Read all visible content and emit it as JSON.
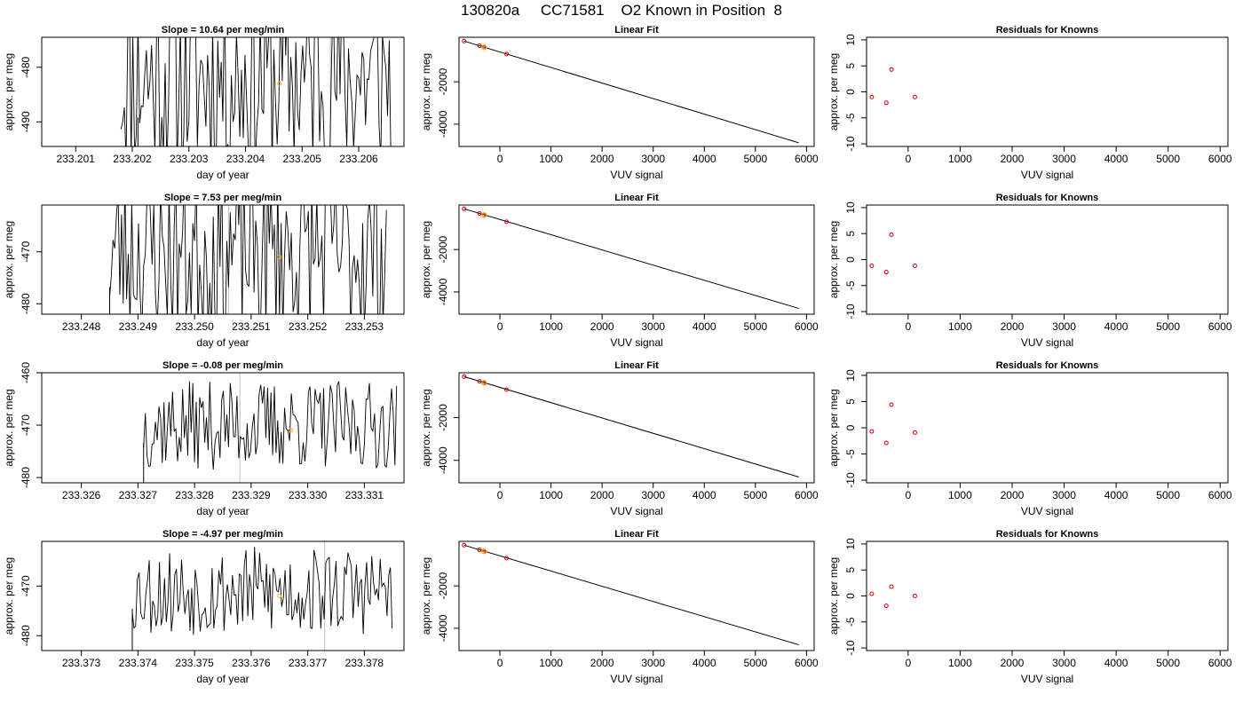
{
  "title": "130820a     CC71581    O2 Known in Position  8",
  "colors": {
    "line": "#000000",
    "highlight": "#ffa500",
    "residual_points": "#cc0000",
    "vline": "#bebebe"
  },
  "chart_data": [
    {
      "type": "line",
      "row": 1,
      "panel": "time-series",
      "title": "Slope =  10.64  per meg/min",
      "xlabel": "day of year",
      "ylabel": "approx. per meg",
      "xlim": [
        233.2004,
        233.2068
      ],
      "ylim": [
        -494.5,
        -474.5
      ],
      "xticks": [
        233.201,
        233.202,
        233.203,
        233.204,
        233.205,
        233.206
      ],
      "yticks": [
        -490,
        -480
      ],
      "series_start": 233.2018,
      "series_end": 233.2066,
      "series_step": 3e-05,
      "series_center": -482,
      "series_amp": 18,
      "series_seed": 11,
      "first_segment_x": 233.2021,
      "vline_x": 233.2055,
      "highlight": {
        "x": 233.2046,
        "y": -483
      }
    },
    {
      "type": "scatter-line",
      "row": 1,
      "panel": "linear-fit",
      "title": "Linear Fit",
      "xlabel": "VUV signal",
      "ylabel": "approx. per meg",
      "xlim": [
        -800,
        6150
      ],
      "ylim": [
        -5050,
        100
      ],
      "xticks": [
        0,
        1000,
        2000,
        3000,
        4000,
        5000,
        6000
      ],
      "yticks": [
        -4000,
        -2000
      ],
      "fit_line": {
        "x": [
          -700,
          5850
        ],
        "y": [
          -80,
          -4880
        ]
      },
      "points": {
        "x": [
          -700,
          -400,
          -320,
          130
        ],
        "y": [
          -80,
          -300,
          -370,
          -690
        ]
      },
      "highlight": {
        "x": -310,
        "y": -370
      }
    },
    {
      "type": "scatter",
      "row": 1,
      "panel": "residuals",
      "title": "Residuals for Knowns",
      "xlabel": "VUV signal",
      "ylabel": "approx. per meg",
      "xlim": [
        -800,
        6150
      ],
      "ylim": [
        -10.5,
        10.5
      ],
      "xticks": [
        0,
        1000,
        2000,
        3000,
        4000,
        5000,
        6000
      ],
      "yticks": [
        -10,
        -5,
        0,
        5,
        10
      ],
      "points": {
        "x": [
          -700,
          -420,
          -320,
          130
        ],
        "y": [
          -1.0,
          -2.1,
          4.3,
          -1.0
        ]
      }
    },
    {
      "type": "line",
      "row": 2,
      "panel": "time-series",
      "title": "Slope =  7.53  per meg/min",
      "xlabel": "day of year",
      "ylabel": "approx. per meg",
      "xlim": [
        233.2473,
        233.2537
      ],
      "ylim": [
        -482,
        -461
      ],
      "xticks": [
        233.248,
        233.249,
        233.25,
        233.251,
        233.252,
        233.253
      ],
      "yticks": [
        -480,
        -470
      ],
      "series_start": 233.2485,
      "series_end": 233.2534,
      "series_step": 3e-05,
      "series_center": -470,
      "series_amp": 17,
      "series_seed": 23,
      "first_segment_x": 233.2485,
      "vline_x": 233.2506,
      "highlight": {
        "x": 233.2515,
        "y": -471
      }
    },
    {
      "type": "scatter-line",
      "row": 2,
      "panel": "linear-fit",
      "title": "Linear Fit",
      "xlabel": "VUV signal",
      "ylabel": "approx. per meg",
      "xlim": [
        -800,
        6150
      ],
      "ylim": [
        -5050,
        100
      ],
      "xticks": [
        0,
        1000,
        2000,
        3000,
        4000,
        5000,
        6000
      ],
      "yticks": [
        -4000,
        -2000
      ],
      "fit_line": {
        "x": [
          -700,
          5850
        ],
        "y": [
          -80,
          -4780
        ]
      },
      "points": {
        "x": [
          -700,
          -400,
          -320,
          130
        ],
        "y": [
          -80,
          -300,
          -370,
          -690
        ]
      },
      "highlight": {
        "x": -310,
        "y": -370
      }
    },
    {
      "type": "scatter",
      "row": 2,
      "panel": "residuals",
      "title": "Residuals for Knowns",
      "xlabel": "VUV signal",
      "ylabel": "approx. per meg",
      "xlim": [
        -800,
        6150
      ],
      "ylim": [
        -10.5,
        10.5
      ],
      "xticks": [
        0,
        1000,
        2000,
        3000,
        4000,
        5000,
        6000
      ],
      "yticks": [
        -10,
        -5,
        0,
        5,
        10
      ],
      "points": {
        "x": [
          -700,
          -420,
          -320,
          130
        ],
        "y": [
          -1.2,
          -2.4,
          4.8,
          -1.2
        ]
      }
    },
    {
      "type": "line",
      "row": 3,
      "panel": "time-series",
      "title": "Slope =  -0.08  per meg/min",
      "xlabel": "day of year",
      "ylabel": "approx. per meg",
      "xlim": [
        233.3253,
        233.3317
      ],
      "ylim": [
        -481,
        -460
      ],
      "xticks": [
        233.326,
        233.327,
        233.328,
        233.329,
        233.33,
        233.331
      ],
      "yticks": [
        -480,
        -470,
        -460
      ],
      "series_start": 233.3271,
      "series_end": 233.3316,
      "series_step": 3e-05,
      "series_center": -470,
      "series_amp": 8.5,
      "series_seed": 37,
      "first_segment_x": 233.3271,
      "vline_x": 233.3288,
      "highlight": {
        "x": 233.3297,
        "y": -471
      }
    },
    {
      "type": "scatter-line",
      "row": 3,
      "panel": "linear-fit",
      "title": "Linear Fit",
      "xlabel": "VUV signal",
      "ylabel": "approx. per meg",
      "xlim": [
        -800,
        6150
      ],
      "ylim": [
        -5050,
        100
      ],
      "xticks": [
        0,
        1000,
        2000,
        3000,
        4000,
        5000,
        6000
      ],
      "yticks": [
        -4000,
        -2000
      ],
      "fit_line": {
        "x": [
          -700,
          5850
        ],
        "y": [
          -80,
          -4780
        ]
      },
      "points": {
        "x": [
          -700,
          -400,
          -320,
          130
        ],
        "y": [
          -80,
          -300,
          -370,
          -690
        ]
      },
      "highlight": {
        "x": -310,
        "y": -370
      }
    },
    {
      "type": "scatter",
      "row": 3,
      "panel": "residuals",
      "title": "Residuals for Knowns",
      "xlabel": "VUV signal",
      "ylabel": "approx. per meg",
      "xlim": [
        -800,
        6150
      ],
      "ylim": [
        -10.5,
        10.5
      ],
      "xticks": [
        0,
        1000,
        2000,
        3000,
        4000,
        5000,
        6000
      ],
      "yticks": [
        -10,
        -5,
        0,
        5,
        10
      ],
      "points": {
        "x": [
          -700,
          -420,
          -320,
          130
        ],
        "y": [
          -0.7,
          -2.9,
          4.4,
          -0.9
        ]
      }
    },
    {
      "type": "line",
      "row": 4,
      "panel": "time-series",
      "title": "Slope =  -4.97  per meg/min",
      "xlabel": "day of year",
      "ylabel": "approx. per meg",
      "xlim": [
        233.3723,
        233.3787
      ],
      "ylim": [
        -483,
        -461
      ],
      "xticks": [
        233.373,
        233.374,
        233.375,
        233.376,
        233.377,
        233.378
      ],
      "yticks": [
        -480,
        -470
      ],
      "series_start": 233.3739,
      "series_end": 233.3785,
      "series_step": 3e-05,
      "series_center": -471,
      "series_amp": 9,
      "series_seed": 53,
      "first_segment_x": 233.3739,
      "vline_x": 233.3773,
      "highlight": {
        "x": 233.3765,
        "y": -472
      }
    },
    {
      "type": "scatter-line",
      "row": 4,
      "panel": "linear-fit",
      "title": "Linear Fit",
      "xlabel": "VUV signal",
      "ylabel": "approx. per meg",
      "xlim": [
        -800,
        6150
      ],
      "ylim": [
        -5050,
        100
      ],
      "xticks": [
        0,
        1000,
        2000,
        3000,
        4000,
        5000,
        6000
      ],
      "yticks": [
        -4000,
        -2000
      ],
      "fit_line": {
        "x": [
          -700,
          5850
        ],
        "y": [
          -80,
          -4780
        ]
      },
      "points": {
        "x": [
          -700,
          -400,
          -320,
          130
        ],
        "y": [
          -80,
          -300,
          -370,
          -690
        ]
      },
      "highlight": {
        "x": -310,
        "y": -370
      }
    },
    {
      "type": "scatter",
      "row": 4,
      "panel": "residuals",
      "title": "Residuals for Knowns",
      "xlabel": "VUV signal",
      "ylabel": "approx. per meg",
      "xlim": [
        -800,
        6150
      ],
      "ylim": [
        -10.5,
        10.5
      ],
      "xticks": [
        0,
        1000,
        2000,
        3000,
        4000,
        5000,
        6000
      ],
      "yticks": [
        -10,
        -5,
        0,
        5,
        10
      ],
      "points": {
        "x": [
          -700,
          -420,
          -320,
          130
        ],
        "y": [
          0.4,
          -1.9,
          1.8,
          0.0
        ]
      }
    }
  ]
}
